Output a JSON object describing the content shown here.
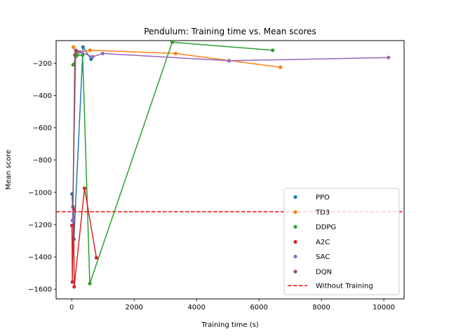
{
  "chart_data": {
    "type": "line",
    "title": "Pendulum: Training time vs. Mean scores",
    "xlabel": "Training time (s)",
    "ylabel": "Mean score",
    "xlim": [
      -500,
      10650
    ],
    "ylim": [
      -1660,
      -60
    ],
    "xticks": [
      0,
      2000,
      4000,
      6000,
      8000,
      10000
    ],
    "yticks": [
      -1600,
      -1400,
      -1200,
      -1000,
      -800,
      -600,
      -400,
      -200
    ],
    "grid": false,
    "legend_position": "lower-right",
    "series": [
      {
        "name": "PPO",
        "color": "#1f77b4",
        "x": [
          10,
          70,
          360,
          620
        ],
        "y": [
          -1010,
          -1290,
          -100,
          -175
        ]
      },
      {
        "name": "TD3",
        "color": "#ff7f0e",
        "x": [
          55,
          130,
          580,
          3330,
          6690
        ],
        "y": [
          -100,
          -135,
          -120,
          -140,
          -225
        ]
      },
      {
        "name": "DDPG",
        "color": "#2ca02c",
        "x": [
          45,
          180,
          350,
          580,
          3220,
          6440
        ],
        "y": [
          -210,
          -150,
          -150,
          -1565,
          -70,
          -120
        ]
      },
      {
        "name": "A2C",
        "color": "#d62728",
        "x": [
          5,
          20,
          60,
          80,
          410,
          790
        ],
        "y": [
          -1205,
          -1555,
          -1105,
          -1585,
          -975,
          -1405
        ]
      },
      {
        "name": "SAC",
        "color": "#9467bd",
        "x": [
          25,
          130,
          260,
          670,
          990,
          5040,
          10150
        ],
        "y": [
          -1175,
          -120,
          -130,
          -160,
          -140,
          -185,
          -165
        ]
      },
      {
        "name": "DQN",
        "color": "#8c564b",
        "x": [
          40,
          100,
          160
        ],
        "y": [
          -1090,
          -150,
          -125
        ]
      }
    ],
    "reference_line": {
      "name": "Without Training",
      "y": -1120,
      "color": "#ff0000",
      "style": "dashed"
    }
  }
}
